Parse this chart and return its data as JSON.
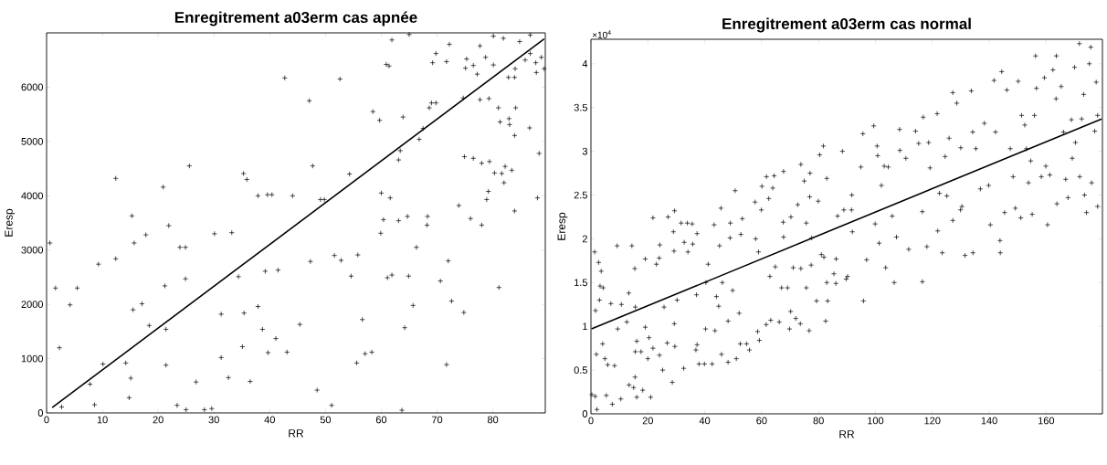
{
  "chart_data": [
    {
      "type": "scatter",
      "title": "Enregitrement a03erm cas apnée",
      "xlabel": "RR",
      "ylabel": "Eresp",
      "marker": "cross",
      "xlim": [
        0,
        89.4
      ],
      "ylim": [
        0,
        7000
      ],
      "xticks": [
        0,
        10,
        20,
        30,
        40,
        50,
        60,
        70,
        80
      ],
      "yticks": [
        0,
        1000,
        2000,
        3000,
        4000,
        5000,
        6000
      ],
      "series": [
        {
          "color": "#000000",
          "x": [
            0.6,
            1.6,
            2.3,
            2.7,
            4.2,
            5.5,
            7.8,
            8.6,
            9.3,
            10.1,
            12.4,
            12.4,
            14.2,
            14.8,
            15.1,
            15.3,
            15.5,
            15.7,
            17.1,
            17.8,
            18.4,
            20.9,
            21.2,
            21.4,
            21.4,
            21.9,
            23.4,
            23.9,
            24.9,
            24.9,
            25.0,
            25.6,
            26.8,
            28.3,
            29.6,
            30.1,
            31.3,
            31.3,
            32.6,
            33.2,
            34.4,
            35.1,
            35.3,
            35.4,
            35.9,
            36.5,
            37.9,
            37.9,
            38.7,
            39.2,
            39.6,
            39.7,
            40.4,
            41.1,
            41.5,
            42.7,
            43.1,
            44.1,
            45.4,
            47.1,
            47.3,
            47.7,
            48.5,
            49.1,
            49.8,
            51.1,
            51.6,
            52.6,
            52.8,
            54.3,
            54.6,
            55.6,
            55.8,
            56.6,
            57.1,
            58.3,
            58.5,
            59.7,
            59.9,
            60.0,
            60.4,
            60.9,
            61.1,
            61.4,
            61.6,
            61.9,
            61.9,
            63.1,
            63.1,
            63.4,
            63.7,
            63.9,
            64.2,
            64.7,
            64.9,
            65.0,
            65.7,
            66.3,
            66.8,
            67.5,
            68.2,
            68.3,
            68.6,
            69.0,
            69.2,
            69.8,
            69.8,
            70.6,
            71.7,
            71.7,
            72.0,
            72.2,
            72.6,
            73.9,
            74.7,
            74.8,
            74.9,
            75.1,
            75.3,
            76.0,
            76.5,
            76.5,
            77.2,
            77.7,
            78.0,
            77.7,
            78.0,
            78.7,
            78.9,
            79.2,
            79.3,
            79.4,
            80.1,
            80.1,
            80.3,
            81.0,
            81.1,
            81.3,
            81.6,
            81.9,
            82.0,
            82.2,
            82.8,
            82.9,
            83.0,
            83.4,
            83.9,
            83.9,
            84.0,
            84.1,
            83.9,
            84.8,
            85.8,
            86.6,
            86.7,
            86.7,
            87.7,
            87.8,
            88.0,
            88.3,
            88.7,
            89.2
          ],
          "values": [
            3130,
            2300,
            1200,
            110,
            1990,
            2300,
            530,
            150,
            2740,
            900,
            4320,
            2840,
            920,
            280,
            640,
            3630,
            1900,
            3130,
            2010,
            3280,
            1610,
            4160,
            2340,
            1540,
            880,
            3450,
            140,
            3050,
            3050,
            2470,
            60,
            4550,
            570,
            60,
            80,
            3300,
            1820,
            1020,
            650,
            3320,
            2510,
            1220,
            4410,
            1840,
            4300,
            580,
            4000,
            1960,
            1540,
            2610,
            4020,
            1110,
            4020,
            1370,
            2630,
            6170,
            1120,
            4000,
            1630,
            5750,
            2790,
            4550,
            420,
            3930,
            3930,
            140,
            2900,
            6150,
            2810,
            4400,
            2520,
            920,
            2910,
            1720,
            1090,
            1120,
            5550,
            5390,
            3310,
            4050,
            3560,
            6420,
            2490,
            6390,
            3960,
            2540,
            6870,
            4660,
            3540,
            4830,
            50,
            5450,
            1570,
            3620,
            2520,
            6970,
            1980,
            3050,
            5040,
            5240,
            3460,
            3620,
            5620,
            5710,
            6450,
            5710,
            6620,
            2430,
            6470,
            890,
            2800,
            6790,
            2060,
            3820,
            5800,
            1850,
            4720,
            6350,
            6520,
            3580,
            6400,
            4690,
            6240,
            6760,
            3460,
            5770,
            4600,
            6550,
            3930,
            4080,
            5790,
            4630,
            6940,
            6410,
            4420,
            5620,
            2310,
            5360,
            4410,
            6900,
            4240,
            4540,
            6180,
            5420,
            5310,
            4470,
            6180,
            3720,
            6340,
            5620,
            5110,
            6840,
            6500,
            5250,
            6960,
            6620,
            6450,
            6270,
            3960,
            4780,
            6550,
            6340
          ]
        },
        {
          "type": "line",
          "marker": "none",
          "color": "#000000",
          "x": [
            1.0,
            89.2
          ],
          "values": [
            100,
            6890
          ]
        }
      ]
    },
    {
      "type": "scatter",
      "title": "Enregitrement a03erm cas normal",
      "xlabel": "RR",
      "ylabel": "Eresp",
      "marker": "cross",
      "annotations": [
        "×10$^{4}$"
      ],
      "xlim": [
        0,
        179.8
      ],
      "ylim": [
        0,
        4.28
      ],
      "xticks": [
        0,
        20,
        40,
        60,
        80,
        100,
        120,
        140,
        160
      ],
      "yticks": [
        0,
        0.5,
        1,
        1.5,
        2,
        2.5,
        3,
        3.5,
        4
      ],
      "series": [
        {
          "color": "#000000",
          "x": [
            0.3,
            1.5,
            1.3,
            1.6,
            2.1,
            1.9,
            2.7,
            3.0,
            3.2,
            3.6,
            4.1,
            4.3,
            4.9,
            5.4,
            5.9,
            7.0,
            7.5,
            8.3,
            9.2,
            9.4,
            10.5,
            10.7,
            12.6,
            13.3,
            13.4,
            14.4,
            15.0,
            15.4,
            15.5,
            15.6,
            15.6,
            16.1,
            16.1,
            17.6,
            18.2,
            19.1,
            19.1,
            20.0,
            21.0,
            20.4,
            21.8,
            21.8,
            23.0,
            24.0,
            24.1,
            24.2,
            25.2,
            25.7,
            27.1,
            26.8,
            28.6,
            29.3,
            29.0,
            29.2,
            29.4,
            29.5,
            30.3,
            31.7,
            32.6,
            32.8,
            33.9,
            34.1,
            35.6,
            35.8,
            36.9,
            37.1,
            37.3,
            37.3,
            38.0,
            39.9,
            40.3,
            40.4,
            41.2,
            42.6,
            43.3,
            43.6,
            44.1,
            44.9,
            45.2,
            45.7,
            45.9,
            46.2,
            48.2,
            48.2,
            48.9,
            49.0,
            49.8,
            50.7,
            51.1,
            52.1,
            52.5,
            52.7,
            53.2,
            54.7,
            55.7,
            57.7,
            57.9,
            58.6,
            58.9,
            59.2,
            59.9,
            60.1,
            61.6,
            61.7,
            62.5,
            62.9,
            63.2,
            63.9,
            64.4,
            64.8,
            66.2,
            67.0,
            67.7,
            67.6,
            67.7,
            69.1,
            69.8,
            70.2,
            70.3,
            71.1,
            72.0,
            72.7,
            73.6,
            73.8,
            73.8,
            75.0,
            75.7,
            75.7,
            76.7,
            76.9,
            77.0,
            77.4,
            77.6,
            79.3,
            79.9,
            80.4,
            81.0,
            81.7,
            81.9,
            82.5,
            82.9,
            82.9,
            83.2,
            85.4,
            86.1,
            86.7,
            86.2,
            88.4,
            88.9,
            89.7,
            90.2,
            91.6,
            91.7,
            91.9,
            94.9,
            95.6,
            95.8,
            96.9,
            99.4,
            99.9,
            100.6,
            100.8,
            101.3,
            102.1,
            103.1,
            103.6,
            104.5,
            105.9,
            106.6,
            107.4,
            108.6,
            108.5,
            110.7,
            111.7,
            114.1,
            115.2,
            116.5,
            116.5,
            116.8,
            118.1,
            118.7,
            119.2,
            121.7,
            121.9,
            122.5,
            123.5,
            124.5,
            125.1,
            125.9,
            127.2,
            127.2,
            128.6,
            129.9,
            130.0,
            130.4,
            131.5,
            133.7,
            134.3,
            134.2,
            135.3,
            136.9,
            138.3,
            139.8,
            140.4,
            141.7,
            142.2,
            143.8,
            143.9,
            144.4,
            145.4,
            146.2,
            147.4,
            148.4,
            149.2,
            150.2,
            151.1,
            151.4,
            152.5,
            153.1,
            153.8,
            154.6,
            155.1,
            155.9,
            156.3,
            156.6,
            158.3,
            159.4,
            159.9,
            160.5,
            161.3,
            162.4,
            163.6,
            163.5,
            163.8,
            165.3,
            166.1,
            166.9,
            167.7,
            168.9,
            169.2,
            170.0,
            170.3,
            171.7,
            171.8,
            172.5,
            173.2,
            173.5,
            174.2,
            175.2,
            175.7,
            176.0,
            177.1,
            177.6,
            178.1,
            178.1
          ],
          "values": [
            0.22,
            0.2,
            1.85,
            1.18,
            0.05,
            0.68,
            1.73,
            1.3,
            1.46,
            1.63,
            0.8,
            1.44,
            0.63,
            0.21,
            0.56,
            1.26,
            0.11,
            0.55,
            1.92,
            0.97,
            0.17,
            1.25,
            1.05,
            1.38,
            0.33,
            1.92,
            0.3,
            1.66,
            0.42,
            1.22,
            0.71,
            0.83,
            0.19,
            0.71,
            0.27,
            1.77,
            0.99,
            0.63,
            0.19,
            0.87,
            2.24,
            0.75,
            1.71,
            1.78,
            0.67,
            1.93,
            0.5,
            1.22,
            2.25,
            0.81,
            0.36,
            1.03,
            2.08,
            1.86,
            2.32,
            0.77,
            1.3,
            2.18,
            0.52,
            1.96,
            2.18,
            1.85,
            2.17,
            1.94,
            0.73,
            1.36,
            2.06,
            0.79,
            0.57,
            0.57,
            0.97,
            1.5,
            1.71,
            0.57,
            2.16,
            0.95,
            1.34,
            1.23,
            1.92,
            2.35,
            0.68,
            1.5,
            0.59,
            1.06,
            2.01,
            2.18,
            1.41,
            2.55,
            0.63,
            1.15,
            0.8,
            2.05,
            2.23,
            0.8,
            0.73,
            2.42,
            2,
            0.94,
            1.85,
            0.84,
            2.33,
            2.6,
            1.02,
            2.71,
            2.46,
            1.57,
            1.07,
            2.58,
            2.72,
            1.68,
            1.05,
            1.44,
            2.77,
            2.19,
            2.02,
            1.44,
            0.97,
            1.17,
            2.25,
            1.67,
            1.09,
            2.39,
            1.03,
            2.85,
            1.66,
            2.66,
            2.18,
            1.44,
            0.95,
            2.48,
            2.75,
            1.7,
            2.01,
            1.29,
            2.43,
            2.96,
            1.82,
            3.06,
            1.79,
            1.06,
            2.69,
            1.5,
            1.29,
            1.6,
            1.49,
            2.26,
            1.77,
            3,
            2.33,
            1.54,
            1.57,
            2.33,
            2.5,
            2.08,
            2.82,
            3.2,
            1.29,
            1.76,
            3.29,
            2.17,
            3.06,
            2.95,
            1.95,
            2.61,
            2.83,
            1.67,
            2.82,
            2.26,
            1.5,
            2.02,
            3.01,
            3.25,
            2.92,
            1.88,
            3.23,
            3.09,
            2.31,
            1.51,
            3.39,
            1.91,
            3.1,
            2.81,
            3.43,
            2.09,
            2.52,
            1.84,
            2.94,
            2.49,
            3.15,
            3.67,
            2.21,
            3.55,
            2.33,
            3.04,
            2.37,
            1.81,
            3.69,
            1.84,
            3.22,
            3.03,
            2.57,
            3.32,
            2.61,
            2.16,
            3.81,
            3.22,
            1.98,
            1.84,
            3.91,
            2.3,
            3.7,
            3.03,
            2.71,
            2.35,
            3.8,
            2.24,
            3.41,
            3.3,
            3.03,
            2.64,
            2.89,
            2.28,
            3.41,
            4.09,
            3.72,
            2.71,
            3.84,
            2.83,
            2.16,
            2.73,
            3.93,
            4.09,
            3.6,
            2.4,
            3.74,
            3.22,
            2.68,
            2.47,
            3.36,
            2.92,
            3.96,
            3.1,
            4.23,
            2.71,
            3.37,
            3.65,
            2.5,
            2.3,
            4,
            4.19,
            2.64,
            3.23,
            3.79,
            2.37,
            3.41
          ]
        },
        {
          "type": "line",
          "marker": "none",
          "color": "#000000",
          "x": [
            0.2,
            179.5
          ],
          "values": [
            0.97,
            3.37
          ]
        }
      ]
    }
  ]
}
